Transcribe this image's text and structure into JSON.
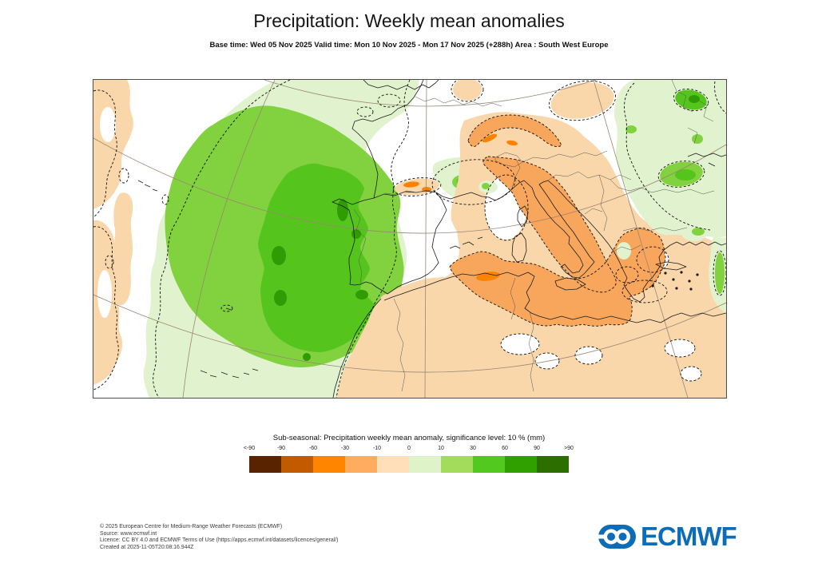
{
  "header": {
    "title": "Precipitation: Weekly mean anomalies",
    "subtitle": "Base time: Wed 05 Nov 2025 Valid time: Mon 10 Nov 2025 - Mon 17 Nov 2025 (+288h) Area : South West Europe"
  },
  "legend": {
    "title": "Sub-seasonal: Precipitation weekly mean anomaly, significance level: 10 % (mm)",
    "ticks": [
      "<-90",
      "-90",
      "-60",
      "-30",
      "-10",
      "0",
      "10",
      "30",
      "60",
      "90",
      ">90"
    ],
    "colors": [
      "#5a2300",
      "#c25a00",
      "#ff8400",
      "#ffac5e",
      "#ffdfba",
      "#dff3c8",
      "#a3dc5a",
      "#52c91e",
      "#2fa000",
      "#2d6e00"
    ]
  },
  "map": {
    "positive_anomaly_colors": [
      "#e1f3ce",
      "#82d13f",
      "#55c51d",
      "#2f9c04"
    ],
    "negative_anomaly_colors": [
      "#f9d7ab",
      "#f8a65b",
      "#fb8300"
    ],
    "significance_contour_style": "dashed"
  },
  "footer": {
    "lines": [
      "© 2025 European Centre for Medium-Range Weather Forecasts (ECMWF)",
      "Source: www.ecmwf.int",
      "Licence: CC BY 4.0 and ECMWF Terms of Use (https://apps.ecmwf.int/datasets/licences/general/)",
      "Created at 2025-11-05T20:08:16.944Z"
    ]
  },
  "logo": {
    "text": "ECMWF",
    "color": "#0d6cb7"
  }
}
